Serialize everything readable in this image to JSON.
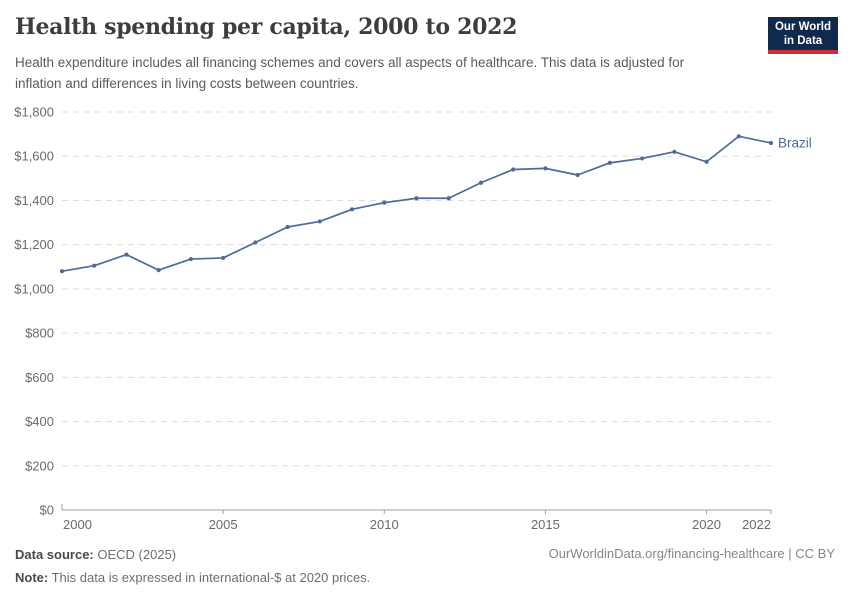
{
  "header": {
    "title": "Health spending per capita, 2000 to 2022",
    "subtitle": "Health expenditure includes all financing schemes and covers all aspects of healthcare. This data is adjusted for inflation and differences in living costs between countries.",
    "logo": {
      "line1": "Our World",
      "line2": "in Data",
      "bg_color": "#102A4E",
      "accent_color": "#CE2D39"
    }
  },
  "chart_data": {
    "type": "line",
    "title": "Health spending per capita, 2000 to 2022",
    "x": [
      2000,
      2001,
      2002,
      2003,
      2004,
      2005,
      2006,
      2007,
      2008,
      2009,
      2010,
      2011,
      2012,
      2013,
      2014,
      2015,
      2016,
      2017,
      2018,
      2019,
      2020,
      2021,
      2022
    ],
    "series": [
      {
        "name": "Brazil",
        "color": "#4C6A9C",
        "values": [
          1080,
          1105,
          1155,
          1085,
          1135,
          1140,
          1210,
          1280,
          1305,
          1360,
          1390,
          1410,
          1410,
          1480,
          1540,
          1545,
          1515,
          1570,
          1590,
          1620,
          1575,
          1690,
          1660
        ]
      }
    ],
    "xlabel": "",
    "ylabel": "",
    "xlim": [
      2000,
      2022
    ],
    "ylim": [
      0,
      1800
    ],
    "grid": "horizontal-dashed",
    "legend_position": "line-end-label",
    "yticks": [
      {
        "value": 0,
        "label": "$0"
      },
      {
        "value": 200,
        "label": "$200"
      },
      {
        "value": 400,
        "label": "$400"
      },
      {
        "value": 600,
        "label": "$600"
      },
      {
        "value": 800,
        "label": "$800"
      },
      {
        "value": 1000,
        "label": "$1,000"
      },
      {
        "value": 1200,
        "label": "$1,200"
      },
      {
        "value": 1400,
        "label": "$1,400"
      },
      {
        "value": 1600,
        "label": "$1,600"
      },
      {
        "value": 1800,
        "label": "$1,800"
      }
    ],
    "xticks": [
      {
        "value": 2000,
        "label": "2000",
        "anchor": "start",
        "tick": false
      },
      {
        "value": 2005,
        "label": "2005",
        "anchor": "middle",
        "tick": true
      },
      {
        "value": 2010,
        "label": "2010",
        "anchor": "middle",
        "tick": true
      },
      {
        "value": 2015,
        "label": "2015",
        "anchor": "middle",
        "tick": true
      },
      {
        "value": 2020,
        "label": "2020",
        "anchor": "middle",
        "tick": true
      },
      {
        "value": 2022,
        "label": "2022",
        "anchor": "end",
        "tick": true
      }
    ]
  },
  "footer": {
    "source_label": "Data source:",
    "source_value": "OECD (2025)",
    "note_label": "Note:",
    "note_value": "This data is expressed in international-$ at 2020 prices.",
    "link": "OurWorldinData.org/financing-healthcare | CC BY"
  }
}
